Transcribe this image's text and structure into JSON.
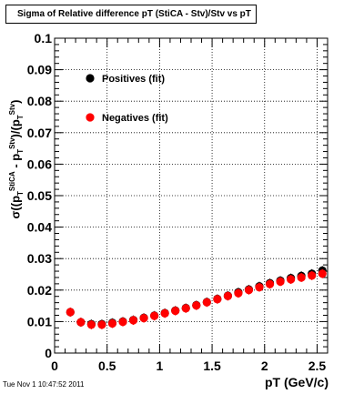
{
  "chart_data": {
    "type": "scatter",
    "title": "Sigma of Relative difference pT (StiCA - Stv)/Stv vs pT",
    "xlabel": "pT (GeV/c)",
    "ylabel": "σ((p_T^StiCA - p_T^Stv)/p_T^Stv)",
    "ylabel_parts": {
      "sigma": "σ((p",
      "sub_t1": "T",
      "sup_stica": "StiCA",
      "minus": " - p",
      "sub_t2": "T",
      "sup_stv1": "Stv",
      "mid": ")/(p",
      "sub_t3": "T",
      "sup_stv2": "Stv",
      "close": ")"
    },
    "xlim": [
      0,
      2.6
    ],
    "ylim": [
      0,
      0.1
    ],
    "x_ticks": [
      "0",
      "0.5",
      "1",
      "1.5",
      "2",
      "2.5"
    ],
    "y_ticks": [
      "0",
      "0.01",
      "0.02",
      "0.03",
      "0.04",
      "0.05",
      "0.06",
      "0.07",
      "0.08",
      "0.09",
      "0.1"
    ],
    "grid": true,
    "legend_position": "top-left",
    "series": [
      {
        "name": "Positives (fit)",
        "color": "#000000",
        "x": [
          0.15,
          0.25,
          0.35,
          0.45,
          0.55,
          0.65,
          0.75,
          0.85,
          0.95,
          1.05,
          1.15,
          1.25,
          1.35,
          1.45,
          1.55,
          1.65,
          1.75,
          1.85,
          1.95,
          2.05,
          2.15,
          2.25,
          2.35,
          2.45,
          2.55
        ],
        "y": [
          0.013,
          0.0098,
          0.0092,
          0.0092,
          0.0096,
          0.01,
          0.0105,
          0.0112,
          0.0119,
          0.0127,
          0.0135,
          0.0143,
          0.0152,
          0.0162,
          0.0172,
          0.0182,
          0.0193,
          0.0202,
          0.0212,
          0.0222,
          0.023,
          0.0238,
          0.0245,
          0.0252,
          0.0262
        ]
      },
      {
        "name": "Negatives (fit)",
        "color": "#ff0000",
        "x": [
          0.15,
          0.25,
          0.35,
          0.45,
          0.55,
          0.65,
          0.75,
          0.85,
          0.95,
          1.05,
          1.15,
          1.25,
          1.35,
          1.45,
          1.55,
          1.65,
          1.75,
          1.85,
          1.95,
          2.05,
          2.15,
          2.25,
          2.35,
          2.45,
          2.55
        ],
        "y": [
          0.013,
          0.0098,
          0.009,
          0.009,
          0.0094,
          0.0099,
          0.0104,
          0.0111,
          0.0118,
          0.0126,
          0.0134,
          0.0142,
          0.0151,
          0.0161,
          0.0171,
          0.0181,
          0.019,
          0.02,
          0.0209,
          0.0219,
          0.0227,
          0.0234,
          0.024,
          0.0246,
          0.0252
        ]
      }
    ]
  },
  "footer": "Tue Nov  1 10:47:52 2011"
}
